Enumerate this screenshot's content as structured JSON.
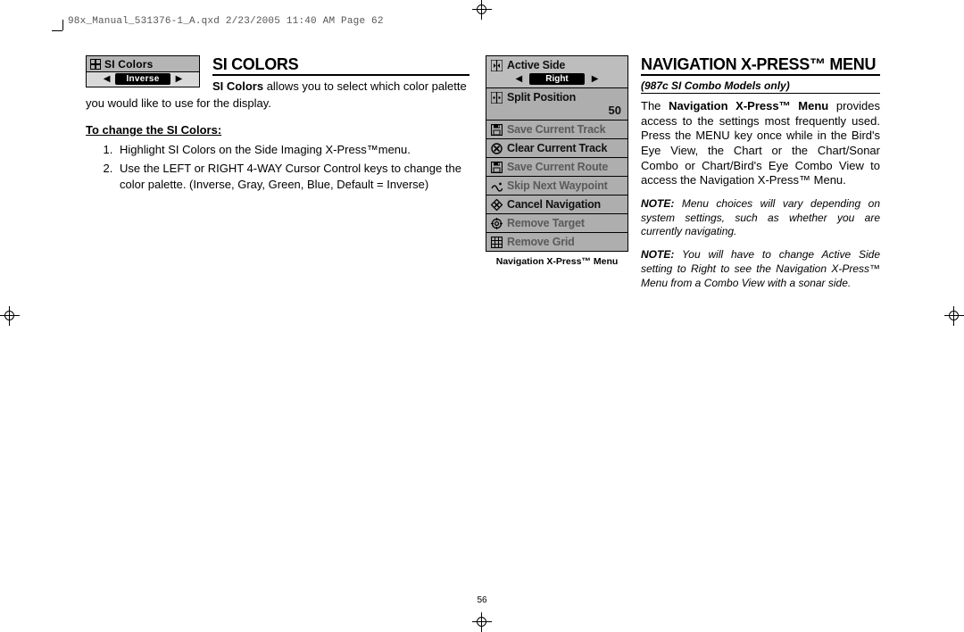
{
  "print_header": "98x_Manual_531376-1_A.qxd  2/23/2005  11:40 AM  Page 62",
  "page_number": "56",
  "left": {
    "chip": {
      "title": "SI Colors",
      "value": "Inverse"
    },
    "heading": "SI COLORS",
    "intro_bold": "SI Colors",
    "intro_rest": " allows you to select which color palette you would like to use for the display.",
    "subsection": "To change the SI Colors:",
    "step1": "Highlight SI Colors on the Side Imaging X-Press™menu.",
    "step2": "Use the LEFT or RIGHT 4-WAY Cursor Control keys to change the color palette. (Inverse, Gray, Green, Blue, Default = Inverse)"
  },
  "right": {
    "heading": "NAVIGATION X-PRESS™ MENU",
    "subhead": "(987c SI Combo Models only)",
    "para_pre": "The ",
    "para_bold": "Navigation X-Press™ Menu",
    "para_post": " provides access to the settings most frequently used. Press the MENU key once while in the Bird's Eye View, the Chart or the Chart/Sonar Combo or Chart/Bird's Eye Combo View to access the Navigation X-Press™ Menu.",
    "note1_lead": "NOTE:",
    "note1": " Menu choices will vary depending on system settings, such as whether you are currently navigating.",
    "note2_lead": "NOTE:",
    "note2": " You will have to change Active Side setting to Right to see the Navigation X-Press™ Menu from a Combo View with a sonar side.",
    "menu": {
      "items": [
        {
          "icon": "split-h",
          "label": "Active Side",
          "value_pill": "Right",
          "dim": false,
          "selected": true
        },
        {
          "icon": "split-v",
          "label": "Split Position",
          "value_right": "50",
          "dim": false
        },
        {
          "icon": "disk",
          "label": "Save Current Track",
          "dim": true
        },
        {
          "icon": "x-circle",
          "label": "Clear Current Track",
          "dim": false
        },
        {
          "icon": "disk",
          "label": "Save Current Route",
          "dim": true
        },
        {
          "icon": "wave",
          "label": "Skip Next Waypoint",
          "dim": true
        },
        {
          "icon": "cancel",
          "label": "Cancel Navigation",
          "dim": false
        },
        {
          "icon": "target",
          "label": "Remove Target",
          "dim": true
        },
        {
          "icon": "grid",
          "label": "Remove Grid",
          "dim": true
        }
      ],
      "caption": "Navigation X-Press™ Menu"
    }
  },
  "style": {
    "bg": "#ffffff",
    "text": "#000000",
    "chip_bg": "#b5b5b5",
    "chip_val_bg": "#d9d9d9",
    "menu_bg": "#aeaeae",
    "dim_text": "#5a5a5a",
    "heading_fontsize": 18,
    "body_fontsize": 13,
    "note_fontsize": 12
  }
}
